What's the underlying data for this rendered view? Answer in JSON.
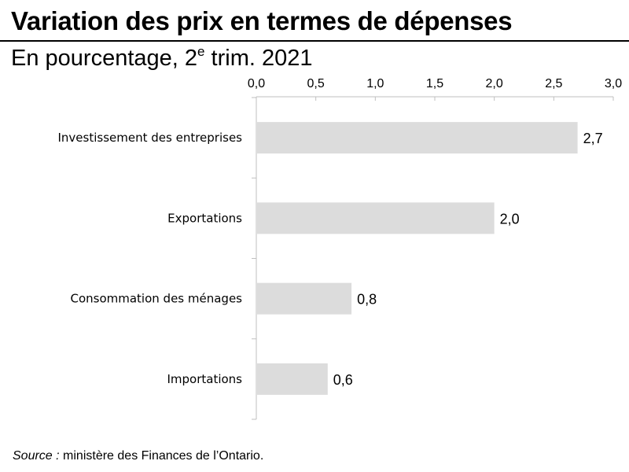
{
  "header": {
    "title": "Variation des prix en termes de dépenses",
    "subtitle_prefix": "En pourcentage, 2",
    "subtitle_sup": "e",
    "subtitle_suffix": " trim. 2021"
  },
  "footer": {
    "source_label": "Source :",
    "source_text": " ministère des Finances de l’Ontario."
  },
  "colors": {
    "bar": "#dcdcdc",
    "axis": "#bfbfbf",
    "text": "#000000"
  },
  "chart_data": {
    "type": "bar",
    "orientation": "horizontal",
    "title": "Variation des prix en termes de dépenses",
    "subtitle": "En pourcentage, 2e trim. 2021",
    "categories": [
      "Investissement des entreprises",
      "Exportations",
      "Consommation des ménages",
      "Importations"
    ],
    "values": [
      2.7,
      2.0,
      0.8,
      0.6
    ],
    "data_labels": [
      "2,7",
      "2,0",
      "0,8",
      "0,6"
    ],
    "xlim": [
      0,
      3.0
    ],
    "xticks": [
      0,
      0.5,
      1.0,
      1.5,
      2.0,
      2.5,
      3.0
    ],
    "xtick_labels": [
      "0,0",
      "0,5",
      "1,0",
      "1,5",
      "2,0",
      "2,5",
      "3,0"
    ],
    "x_axis_position": "top",
    "xlabel": "",
    "ylabel": "",
    "grid": false,
    "legend": "none"
  }
}
